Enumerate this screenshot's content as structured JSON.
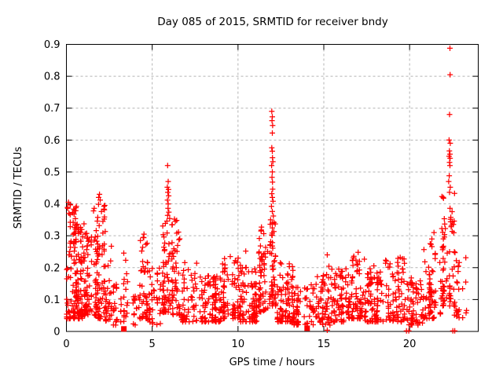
{
  "chart_data": {
    "type": "scatter",
    "title": "Day 085 of 2015, SRMTID for receiver bndy",
    "xlabel": "GPS time / hours",
    "ylabel": "SRMTID / TECUs",
    "xlim": [
      0,
      24
    ],
    "ylim": [
      0,
      0.9
    ],
    "xtick_values": [
      0,
      5,
      10,
      15,
      20
    ],
    "xtick_labels": [
      "0",
      "5",
      "10",
      "15",
      "20"
    ],
    "ytick_values": [
      0,
      0.1,
      0.2,
      0.3,
      0.4,
      0.5,
      0.6,
      0.7,
      0.8,
      0.9
    ],
    "ytick_labels": [
      "0",
      "0.1",
      "0.2",
      "0.3",
      "0.4",
      "0.5",
      "0.6",
      "0.7",
      "0.8",
      "0.9"
    ],
    "grid": {
      "show": true,
      "color": "#b3b3b3",
      "dash": [
        3,
        3
      ]
    },
    "background": "#ffffff",
    "axis_color": "#000000",
    "marker": "plus",
    "marker_color": "#ff0000",
    "square_marker_color": "#ff0000",
    "peak_points": [
      [
        5.9,
        0.52
      ],
      [
        5.93,
        0.47
      ],
      [
        5.88,
        0.452
      ],
      [
        5.95,
        0.445
      ],
      [
        5.91,
        0.436
      ],
      [
        5.96,
        0.425
      ],
      [
        5.89,
        0.412
      ],
      [
        5.93,
        0.4
      ],
      [
        5.92,
        0.386
      ],
      [
        5.97,
        0.374
      ],
      [
        5.9,
        0.364
      ],
      [
        6.02,
        0.354
      ],
      [
        5.86,
        0.346
      ],
      [
        6.35,
        0.345
      ],
      [
        6.3,
        0.352
      ],
      [
        11.97,
        0.69
      ],
      [
        12.0,
        0.673
      ],
      [
        11.98,
        0.661
      ],
      [
        12.02,
        0.646
      ],
      [
        12.0,
        0.622
      ],
      [
        11.97,
        0.576
      ],
      [
        12.0,
        0.565
      ],
      [
        12.01,
        0.545
      ],
      [
        12.03,
        0.532
      ],
      [
        11.96,
        0.52
      ],
      [
        12.0,
        0.5
      ],
      [
        11.98,
        0.483
      ],
      [
        12.01,
        0.468
      ],
      [
        12.02,
        0.446
      ],
      [
        11.97,
        0.432
      ],
      [
        12.0,
        0.42
      ],
      [
        12.04,
        0.408
      ],
      [
        11.95,
        0.392
      ],
      [
        12.0,
        0.376
      ],
      [
        12.06,
        0.362
      ],
      [
        11.9,
        0.35
      ],
      [
        12.1,
        0.342
      ],
      [
        11.88,
        0.336
      ],
      [
        22.35,
        0.888
      ],
      [
        22.36,
        0.805
      ],
      [
        22.33,
        0.68
      ],
      [
        22.3,
        0.6
      ],
      [
        22.37,
        0.59
      ],
      [
        22.32,
        0.566
      ],
      [
        22.35,
        0.556
      ],
      [
        22.3,
        0.549
      ],
      [
        22.36,
        0.543
      ],
      [
        22.33,
        0.53
      ],
      [
        22.35,
        0.52
      ],
      [
        22.31,
        0.488
      ],
      [
        22.28,
        0.47
      ],
      [
        22.37,
        0.452
      ],
      [
        22.33,
        0.436
      ],
      [
        21.42,
        0.31
      ],
      [
        0.12,
        0.405
      ],
      [
        0.22,
        0.398
      ],
      [
        0.08,
        0.386
      ],
      [
        0.35,
        0.372
      ],
      [
        1.93,
        0.43
      ],
      [
        1.88,
        0.42
      ],
      [
        1.97,
        0.412
      ],
      [
        1.62,
        0.386
      ],
      [
        1.58,
        0.378
      ],
      [
        4.52,
        0.305
      ],
      [
        4.48,
        0.295
      ],
      [
        9.55,
        0.235
      ],
      [
        10.45,
        0.252
      ],
      [
        15.2,
        0.24
      ],
      [
        17.0,
        0.248
      ],
      [
        19.45,
        0.232
      ],
      [
        21.3,
        0.29
      ]
    ],
    "zero_points": [
      [
        15.2,
        0.004
      ],
      [
        19.82,
        0.002
      ],
      [
        19.95,
        0.002
      ],
      [
        22.52,
        0.002
      ],
      [
        22.63,
        0.002
      ]
    ],
    "square_points": [
      [
        3.35,
        0.008
      ],
      [
        14.03,
        0.01
      ]
    ],
    "cluster_fields": [
      "x_start",
      "x_end",
      "count",
      "y_min",
      "y_max",
      "skew"
    ],
    "clusters": [
      [
        0.0,
        0.55,
        85,
        0.04,
        0.41,
        1.6
      ],
      [
        0.55,
        1.05,
        80,
        0.04,
        0.34,
        1.6
      ],
      [
        1.05,
        1.45,
        55,
        0.05,
        0.31,
        1.7
      ],
      [
        1.45,
        1.85,
        50,
        0.05,
        0.39,
        1.7
      ],
      [
        1.85,
        2.25,
        48,
        0.04,
        0.43,
        1.8
      ],
      [
        2.25,
        2.65,
        30,
        0.03,
        0.27,
        1.8
      ],
      [
        2.65,
        3.1,
        17,
        0.02,
        0.15,
        1.6
      ],
      [
        3.1,
        3.6,
        22,
        0.03,
        0.26,
        1.8
      ],
      [
        3.6,
        4.1,
        12,
        0.02,
        0.12,
        1.5
      ],
      [
        4.1,
        4.8,
        45,
        0.04,
        0.31,
        1.9
      ],
      [
        4.8,
        5.6,
        38,
        0.02,
        0.2,
        1.7
      ],
      [
        5.6,
        6.1,
        55,
        0.06,
        0.35,
        1.9
      ],
      [
        6.1,
        6.7,
        50,
        0.05,
        0.36,
        2.0
      ],
      [
        6.7,
        7.6,
        55,
        0.03,
        0.22,
        1.7
      ],
      [
        7.6,
        9.0,
        100,
        0.03,
        0.18,
        1.6
      ],
      [
        9.0,
        10.0,
        75,
        0.04,
        0.23,
        1.7
      ],
      [
        10.0,
        11.2,
        95,
        0.03,
        0.22,
        1.6
      ],
      [
        11.2,
        11.8,
        60,
        0.06,
        0.33,
        1.8
      ],
      [
        11.8,
        12.2,
        50,
        0.08,
        0.35,
        1.6
      ],
      [
        12.2,
        13.2,
        85,
        0.03,
        0.22,
        1.7
      ],
      [
        13.2,
        14.4,
        65,
        0.02,
        0.15,
        1.6
      ],
      [
        14.4,
        15.4,
        60,
        0.02,
        0.21,
        1.7
      ],
      [
        15.4,
        16.6,
        85,
        0.03,
        0.2,
        1.7
      ],
      [
        16.6,
        17.4,
        65,
        0.04,
        0.24,
        1.8
      ],
      [
        17.4,
        18.6,
        85,
        0.03,
        0.21,
        1.7
      ],
      [
        18.6,
        19.8,
        80,
        0.03,
        0.23,
        1.7
      ],
      [
        19.8,
        20.8,
        65,
        0.02,
        0.17,
        1.6
      ],
      [
        20.8,
        21.8,
        65,
        0.04,
        0.28,
        1.8
      ],
      [
        21.8,
        22.6,
        75,
        0.08,
        0.44,
        1.9
      ],
      [
        22.6,
        23.3,
        28,
        0.04,
        0.26,
        1.8
      ]
    ]
  }
}
